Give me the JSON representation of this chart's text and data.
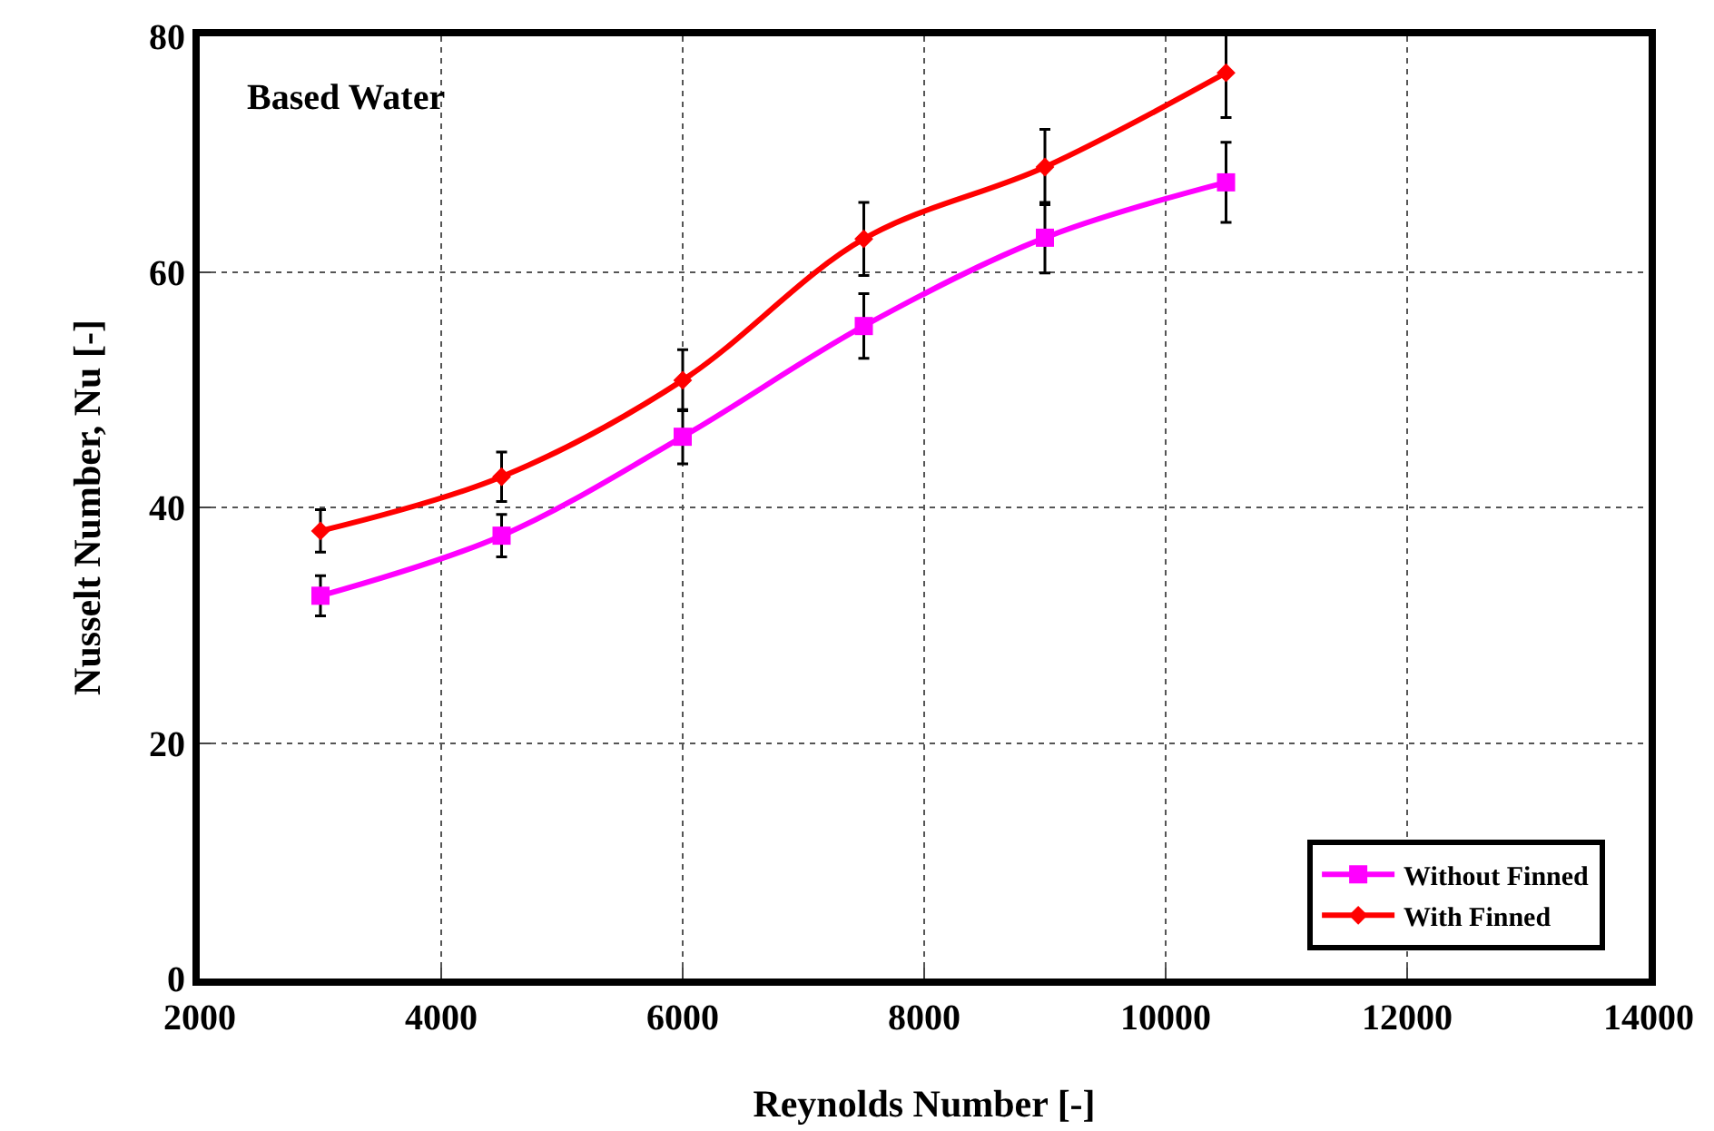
{
  "chart_data": {
    "type": "line",
    "xlabel": "Reynolds Number [-]",
    "ylabel": "Nusselt Number, Nu [-]",
    "annotations": [
      "Based Water"
    ],
    "x": [
      3000,
      4500,
      6000,
      7500,
      9000,
      10500
    ],
    "series": [
      {
        "name": "Without Finned",
        "color": "#ff00ff",
        "marker": "square",
        "values": [
          32.5,
          37.6,
          46.0,
          55.4,
          62.9,
          67.6
        ],
        "errors": [
          1.7,
          1.8,
          2.3,
          2.75,
          3.0,
          3.4
        ]
      },
      {
        "name": "With Finned",
        "color": "#ff0000",
        "marker": "diamond",
        "values": [
          38.0,
          42.6,
          50.8,
          62.8,
          68.9,
          76.9
        ],
        "errors": [
          1.8,
          2.1,
          2.6,
          3.1,
          3.2,
          3.8
        ]
      }
    ],
    "xlim": [
      2000,
      14000
    ],
    "xticks": [
      2000,
      4000,
      6000,
      8000,
      10000,
      12000,
      14000
    ],
    "ylim": [
      0,
      80
    ],
    "yticks": [
      0,
      20,
      40,
      60,
      80
    ],
    "grid": true,
    "legend": "bottom right",
    "line_style": "solid"
  }
}
